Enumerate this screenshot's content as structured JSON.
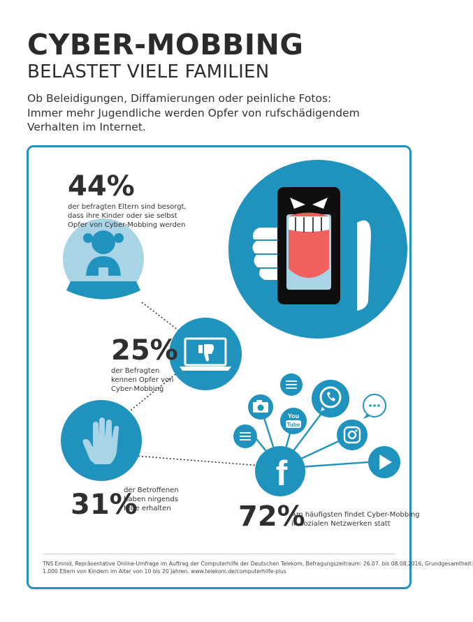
{
  "header": {
    "title": "CYBER-MOBBING",
    "subtitle": "BELASTET VIELE FAMILIEN",
    "intro_lines": [
      "Ob Beleidigungen, Diffamierungen oder peinliche Fotos:",
      "Immer mehr Jugendliche werden Opfer von rufschädigendem",
      "Verhalten im Internet."
    ]
  },
  "stats": [
    {
      "value": "44%",
      "lines": [
        "der befragten Eltern sind besorgt,",
        "dass ihre Kinder oder sie selbst",
        "Opfer von Cyber-Mobbing werden"
      ]
    },
    {
      "value": "25%",
      "lines": [
        "der Befragten",
        "kennen Opfer von",
        "Cyber-Mobbing"
      ]
    },
    {
      "value": "31%",
      "lines": [
        "der Betroffenen",
        "haben nirgends",
        "Hilfe erhalten"
      ]
    },
    {
      "value": "72%",
      "lines": [
        "Am häufigsten findet Cyber-Mobbing",
        "in sozialen Netzwerken statt"
      ]
    }
  ],
  "icons": {
    "youtube_top": "You",
    "youtube_bottom": "Tube",
    "facebook": "f"
  },
  "footer": {
    "source_lines": [
      "TNS Emnid, Repräsentative Online-Umfrage im Auftrag der Computerhilfe der Deutschen Telekom, Befragungszeitraum: 26.07. bis 08.08.2016, Grundgesamtheit:",
      "1.000 Eltern von Kindern im Alter von 10 bis 20 Jahren. www.telekom.de/computerhilfe-plus"
    ]
  },
  "colors": {
    "accent": "#1f93bd",
    "light_blue": "#a9d4e6",
    "tongue": "#f0605c",
    "text": "#2b2b2b"
  }
}
